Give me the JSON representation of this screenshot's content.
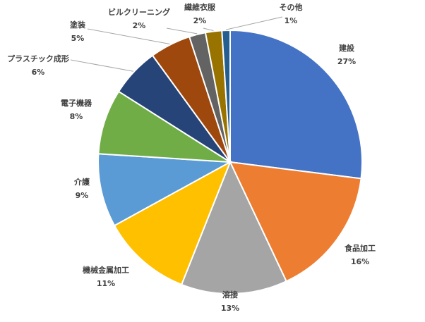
{
  "chart_data": {
    "type": "pie",
    "categories": [
      "建設",
      "食品加工",
      "溶接",
      "機械金属加工",
      "介護",
      "電子機器",
      "プラスチック成形",
      "塗装",
      "ビルクリーニング",
      "繊維衣服",
      "その他"
    ],
    "values": [
      27,
      16,
      13,
      11,
      9,
      8,
      6,
      5,
      2,
      2,
      1
    ],
    "value_labels": [
      "27%",
      "16%",
      "13%",
      "11%",
      "9%",
      "8%",
      "6%",
      "5%",
      "2%",
      "2%",
      "1%"
    ],
    "colors": [
      "#4472C4",
      "#ED7D31",
      "#A5A5A5",
      "#FFC000",
      "#5B9BD5",
      "#70AD47",
      "#264478",
      "#9E480E",
      "#636363",
      "#997300",
      "#255E91"
    ],
    "legend": "none",
    "data_labels": "category name and percentage, outside end"
  }
}
